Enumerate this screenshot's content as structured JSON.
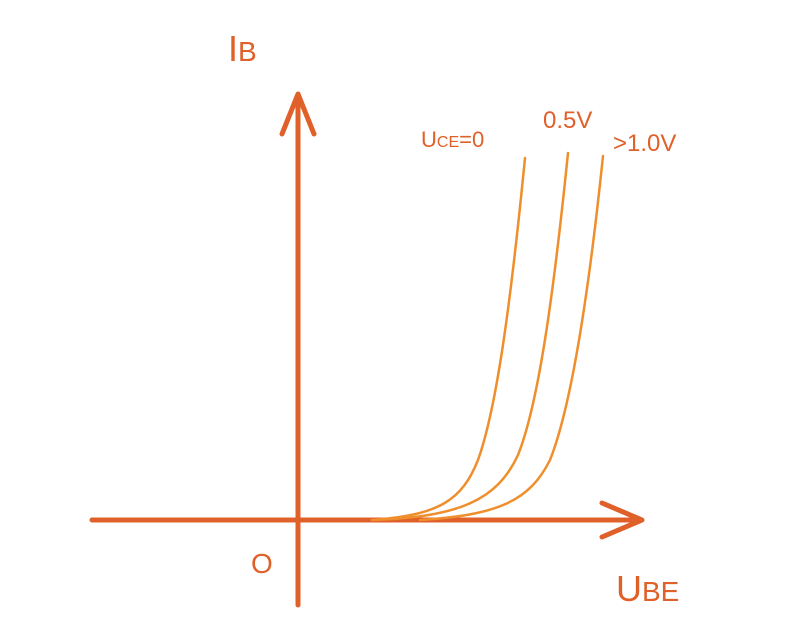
{
  "chart_data": {
    "type": "line",
    "title": "",
    "xlabel": {
      "main": "U",
      "sub": "BE"
    },
    "ylabel": {
      "main": "I",
      "sub": "B"
    },
    "origin_label": "O",
    "grid": false,
    "legend": "none",
    "colors": {
      "axes": "#e0602a",
      "curves": "#ef8e2c",
      "text": "#e0602a"
    },
    "series": [
      {
        "label": {
          "main": "U",
          "sub": "CE",
          "suffix": "=0"
        }
      },
      {
        "label": {
          "main": "0.5V"
        }
      },
      {
        "label": {
          "main": ">1.0V"
        }
      }
    ]
  }
}
